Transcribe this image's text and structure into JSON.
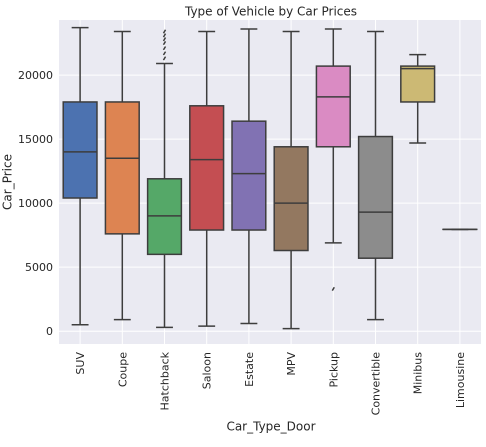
{
  "chart_data": {
    "type": "boxplot",
    "title": "Type of Vehicle by Car Prices",
    "xlabel": "Car_Type_Door",
    "ylabel": "Car_Price",
    "ylim": [
      -1000,
      24300
    ],
    "yticks": [
      0,
      5000,
      10000,
      15000,
      20000
    ],
    "grid": true,
    "categories": [
      "SUV",
      "Coupe",
      "Hatchback",
      "Saloon",
      "Estate",
      "MPV",
      "Pickup",
      "Convertible",
      "Minibus",
      "Limousine"
    ],
    "boxes": [
      {
        "category": "SUV",
        "color": "#4C72B0",
        "min": 500,
        "q1": 10400,
        "median": 14000,
        "q3": 17900,
        "max": 23700,
        "outliers": []
      },
      {
        "category": "Coupe",
        "color": "#DD8452",
        "min": 900,
        "q1": 7600,
        "median": 13500,
        "q3": 17900,
        "max": 23400,
        "outliers": []
      },
      {
        "category": "Hatchback",
        "color": "#55A868",
        "min": 300,
        "q1": 6000,
        "median": 9000,
        "q3": 11900,
        "max": 20900,
        "outliers": [
          21300,
          21700,
          22100,
          22500,
          22800,
          23100,
          23400
        ]
      },
      {
        "category": "Saloon",
        "color": "#C44E52",
        "min": 400,
        "q1": 7900,
        "median": 13400,
        "q3": 17600,
        "max": 23400,
        "outliers": []
      },
      {
        "category": "Estate",
        "color": "#8172B3",
        "min": 600,
        "q1": 7900,
        "median": 12300,
        "q3": 16400,
        "max": 23600,
        "outliers": []
      },
      {
        "category": "MPV",
        "color": "#937860",
        "min": 200,
        "q1": 6300,
        "median": 10000,
        "q3": 14400,
        "max": 23400,
        "outliers": []
      },
      {
        "category": "Pickup",
        "color": "#DA8BC3",
        "min": 6900,
        "q1": 14400,
        "median": 18300,
        "q3": 20700,
        "max": 23600,
        "outliers": [
          3300
        ]
      },
      {
        "category": "Convertible",
        "color": "#8C8C8C",
        "min": 900,
        "q1": 5700,
        "median": 9300,
        "q3": 15200,
        "max": 23400,
        "outliers": []
      },
      {
        "category": "Minibus",
        "color": "#CCB974",
        "min": 14700,
        "q1": 17900,
        "median": 20500,
        "q3": 20700,
        "max": 21600,
        "outliers": []
      },
      {
        "category": "Limousine",
        "color": "#64B5CD",
        "min": 7950,
        "q1": 7950,
        "median": 7950,
        "q3": 7950,
        "max": 7950,
        "outliers": []
      }
    ]
  }
}
